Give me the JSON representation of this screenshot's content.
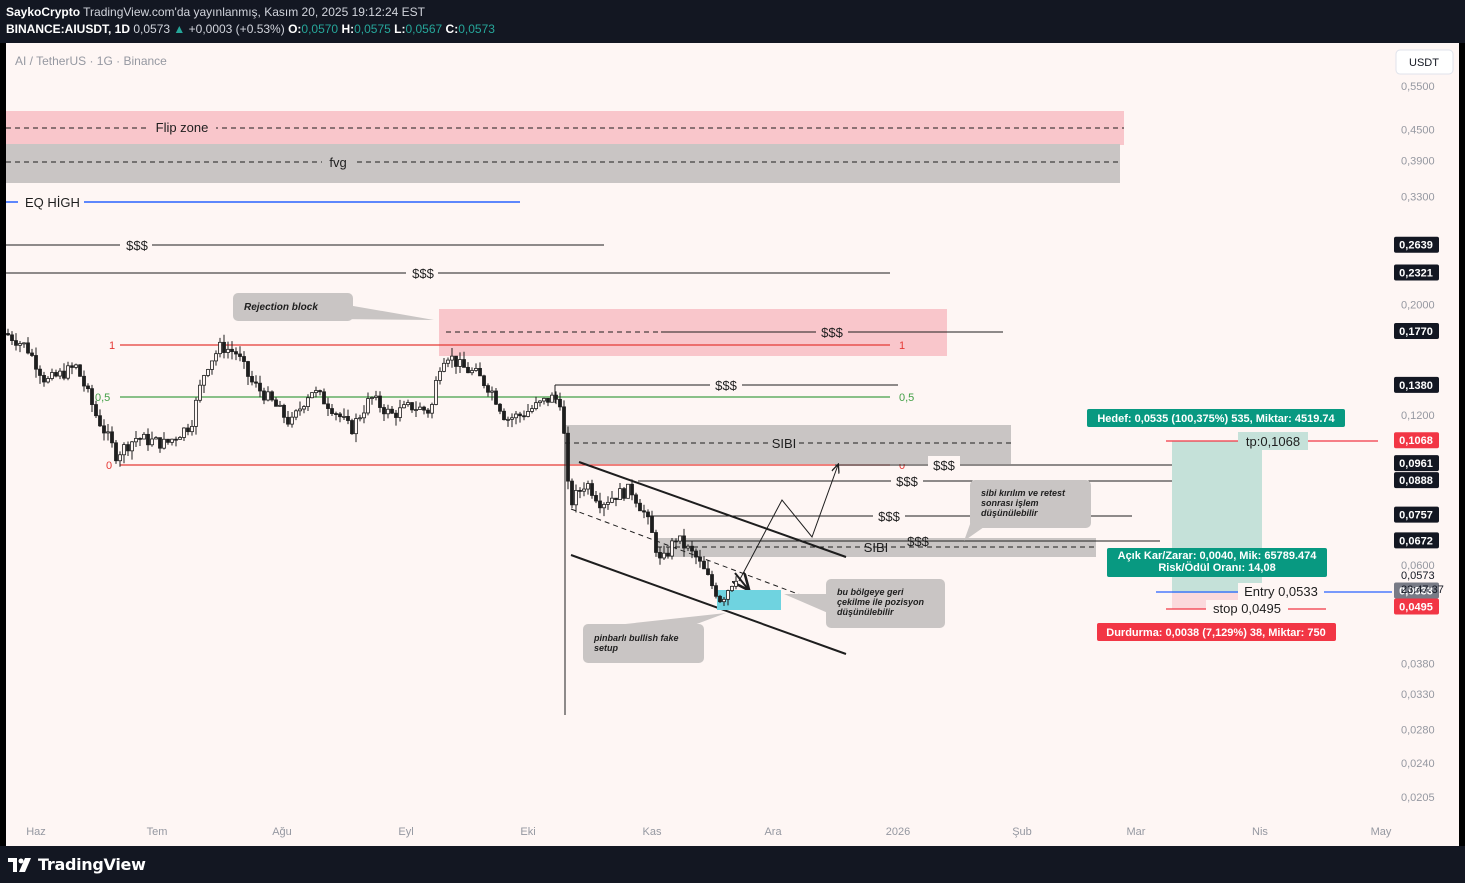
{
  "header": {
    "author": "SaykoCrypto",
    "published_line": "TradingView.com'da yayınlanmış, Kasım 20, 2025 19:12:24 EST",
    "symbol": "BINANCE:AIUSDT, 1D",
    "last": "0,0573",
    "change_arrow": "▲",
    "change": "+0,0003 (+0.53%)",
    "o_label": "O:",
    "o_value": "0,0570",
    "h_label": "H:",
    "h_value": "0,0575",
    "l_label": "L:",
    "l_value": "0,0567",
    "c_label": "C:",
    "c_value": "0,0573"
  },
  "chart": {
    "title": "AI / TetherUS · 1G · Binance",
    "currency": "USDT",
    "brand": "TradingView",
    "colors": {
      "bg": "#fef6f4",
      "up": "#1e1e1e",
      "down": "#1e1e1e",
      "red_zone": "#f9c6cb",
      "grey_zone": "#c9c5c4",
      "fib_red": "#e53935",
      "fib_green": "#43a047",
      "eq_blue": "#2962ff",
      "tp_green": "#089981",
      "stop_red": "#f23645",
      "entry_blue": "#2962ff",
      "long_box": "#c5e1d9",
      "cyan_box": "#6fd3e0"
    }
  },
  "chart_data": {
    "type": "candlestick",
    "symbol": "AIUSDT",
    "interval": "1D",
    "scale": "log",
    "y_axis_ticks": [
      "0,5500",
      "0,4500",
      "0,3900",
      "0,3300",
      "0,2000",
      "0,1200",
      "0,0600",
      "0,0380",
      "0,0330",
      "0,0280",
      "0,0240",
      "0,0205"
    ],
    "y_axis_tick_values": [
      0.55,
      0.45,
      0.39,
      0.33,
      0.2,
      0.12,
      0.06,
      0.038,
      0.033,
      0.028,
      0.024,
      0.0205
    ],
    "x_axis_ticks": [
      "Haz",
      "Tem",
      "Ağu",
      "Eyl",
      "Eki",
      "Kas",
      "Ara",
      "2026",
      "Şub",
      "Mar",
      "Nis",
      "May"
    ],
    "price_labels": [
      {
        "text": "0,2639",
        "value": 0.2639,
        "color": "#131722"
      },
      {
        "text": "0,2321",
        "value": 0.2321,
        "color": "#131722"
      },
      {
        "text": "0,1770",
        "value": 0.177,
        "color": "#131722"
      },
      {
        "text": "0,1380",
        "value": 0.138,
        "color": "#131722"
      },
      {
        "text": "0,1068",
        "value": 0.1068,
        "color": "#f23645"
      },
      {
        "text": "0,0961",
        "value": 0.0961,
        "color": "#131722"
      },
      {
        "text": "0,0888",
        "value": 0.0888,
        "color": "#131722"
      },
      {
        "text": "0,0757",
        "value": 0.0757,
        "color": "#131722"
      },
      {
        "text": "0,0672",
        "value": 0.0672,
        "color": "#131722"
      },
      {
        "text": "0,0533",
        "value": 0.0533,
        "color": "#787b86"
      },
      {
        "text": "0,0495",
        "value": 0.0495,
        "color": "#f23645"
      }
    ],
    "last_price": {
      "text": "0,0573",
      "value": 0.0573,
      "countdown": "23:47:37"
    },
    "candles_ohlc_samples": [
      {
        "period": "Haz",
        "high": 0.178,
        "low": 0.146
      },
      {
        "period": "Tem",
        "high": 0.172,
        "low": 0.093
      },
      {
        "period": "Ağu",
        "high": 0.176,
        "low": 0.11
      },
      {
        "period": "Eyl",
        "high": 0.195,
        "low": 0.112
      },
      {
        "period": "Eki",
        "high": 0.142,
        "low": 0.03
      },
      {
        "period": "Kas",
        "high": 0.098,
        "low": 0.049
      }
    ],
    "zones": [
      {
        "label": "Flip zone",
        "from": 0.44,
        "to": 0.51
      },
      {
        "label": "fvg",
        "from": 0.36,
        "to": 0.415
      },
      {
        "label": "SIBI",
        "from": 0.094,
        "to": 0.112
      },
      {
        "label": "SIBI",
        "from": 0.063,
        "to": 0.069
      }
    ],
    "levels": [
      {
        "label": "EQ HİGH",
        "value": 0.322
      },
      {
        "label": "$$$",
        "value": 0.2639
      },
      {
        "label": "$$$",
        "value": 0.2321
      },
      {
        "label": "$$$",
        "value": 0.177
      },
      {
        "label": "$$$",
        "value": 0.138
      },
      {
        "label": "$$$",
        "value": 0.0961
      },
      {
        "label": "$$$",
        "value": 0.0888
      },
      {
        "label": "$$$",
        "value": 0.0757
      },
      {
        "label": "$$$",
        "value": 0.0672
      }
    ],
    "fibonacci": [
      {
        "ratio": "1",
        "value": 0.1735
      },
      {
        "ratio": "0,5",
        "value": 0.13
      },
      {
        "ratio": "0",
        "value": 0.0961
      }
    ],
    "position": {
      "type": "long",
      "entry": 0.0533,
      "tp": 0.1068,
      "stop": 0.0495,
      "entry_label": "Entry 0,0533",
      "tp_label": "tp:0,1068",
      "stop_label": "stop 0,0495",
      "target_label": "Hedef: 0,0535 (100,375%) 535, Miktar: 4519.74",
      "pnl_label_1": "Açık Kar/Zarar: 0,0040, Mik: 65789.474",
      "pnl_label_2": "Risk/Ödül Oranı: 14,08",
      "stop_info_label": "Durdurma: 0,0038 (7,129%) 38, Miktar: 750"
    },
    "annotations": [
      "Rejection block",
      "sibi kırılım ve retest sonrası işlem düşünülebilir",
      "bu bölgeye geri çekilme ile pozisyon düşünülebilir",
      "pinbarlı bullish fake setup"
    ]
  }
}
